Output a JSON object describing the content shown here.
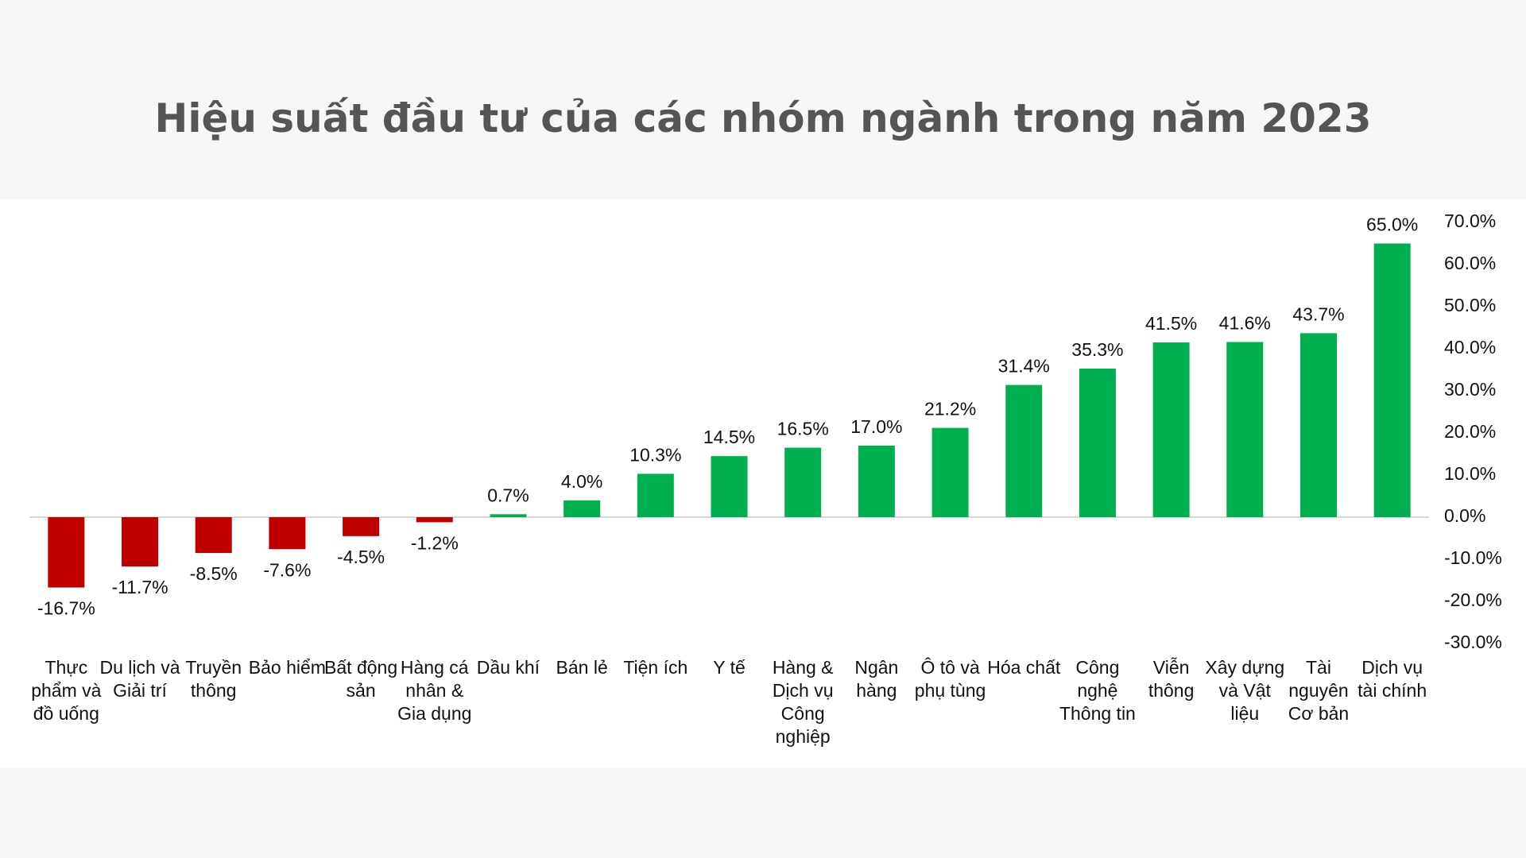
{
  "chart_data": {
    "type": "bar",
    "title": "Hiệu suất đầu tư của các nhóm ngành trong năm 2023",
    "categories": [
      "Thực phẩm và đồ uống",
      "Du lịch và Giải trí",
      "Truyền thông",
      "Bảo hiểm",
      "Bất động sản",
      "Hàng cá nhân & Gia dụng",
      "Dầu khí",
      "Bán lẻ",
      "Tiện ích",
      "Y tế",
      "Hàng & Dịch vụ Công nghiệp",
      "Ngân hàng",
      "Ô tô và phụ tùng",
      "Hóa chất",
      "Công nghệ Thông tin",
      "Viễn thông",
      "Xây dựng và Vật liệu",
      "Tài nguyên Cơ bản",
      "Dịch vụ tài chính"
    ],
    "values": [
      -16.7,
      -11.7,
      -8.5,
      -7.6,
      -4.5,
      -1.2,
      0.7,
      4.0,
      10.3,
      14.5,
      16.5,
      17.0,
      21.2,
      31.4,
      35.3,
      41.5,
      41.6,
      43.7,
      65.0
    ],
    "value_labels": [
      "-16.7%",
      "-11.7%",
      "-8.5%",
      "-7.6%",
      "-4.5%",
      "-1.2%",
      "0.7%",
      "4.0%",
      "10.3%",
      "14.5%",
      "16.5%",
      "17.0%",
      "21.2%",
      "31.4%",
      "35.3%",
      "41.5%",
      "41.6%",
      "43.7%",
      "65.0%"
    ],
    "color": "#00b050",
    "negative_color": "#c00000",
    "ylim": [
      -30,
      70
    ],
    "yticks": [
      {
        "value": -30,
        "label": "-30.0%"
      },
      {
        "value": -20,
        "label": "-20.0%"
      },
      {
        "value": -10,
        "label": "-10.0%"
      },
      {
        "value": 0,
        "label": "0.0%"
      },
      {
        "value": 10,
        "label": "10.0%"
      },
      {
        "value": 20,
        "label": "20.0%"
      },
      {
        "value": 30,
        "label": "30.0%"
      },
      {
        "value": 40,
        "label": "40.0%"
      },
      {
        "value": 50,
        "label": "50.0%"
      },
      {
        "value": 60,
        "label": "60.0%"
      },
      {
        "value": 70,
        "label": "70.0%"
      }
    ],
    "y_axis_side": "right"
  }
}
